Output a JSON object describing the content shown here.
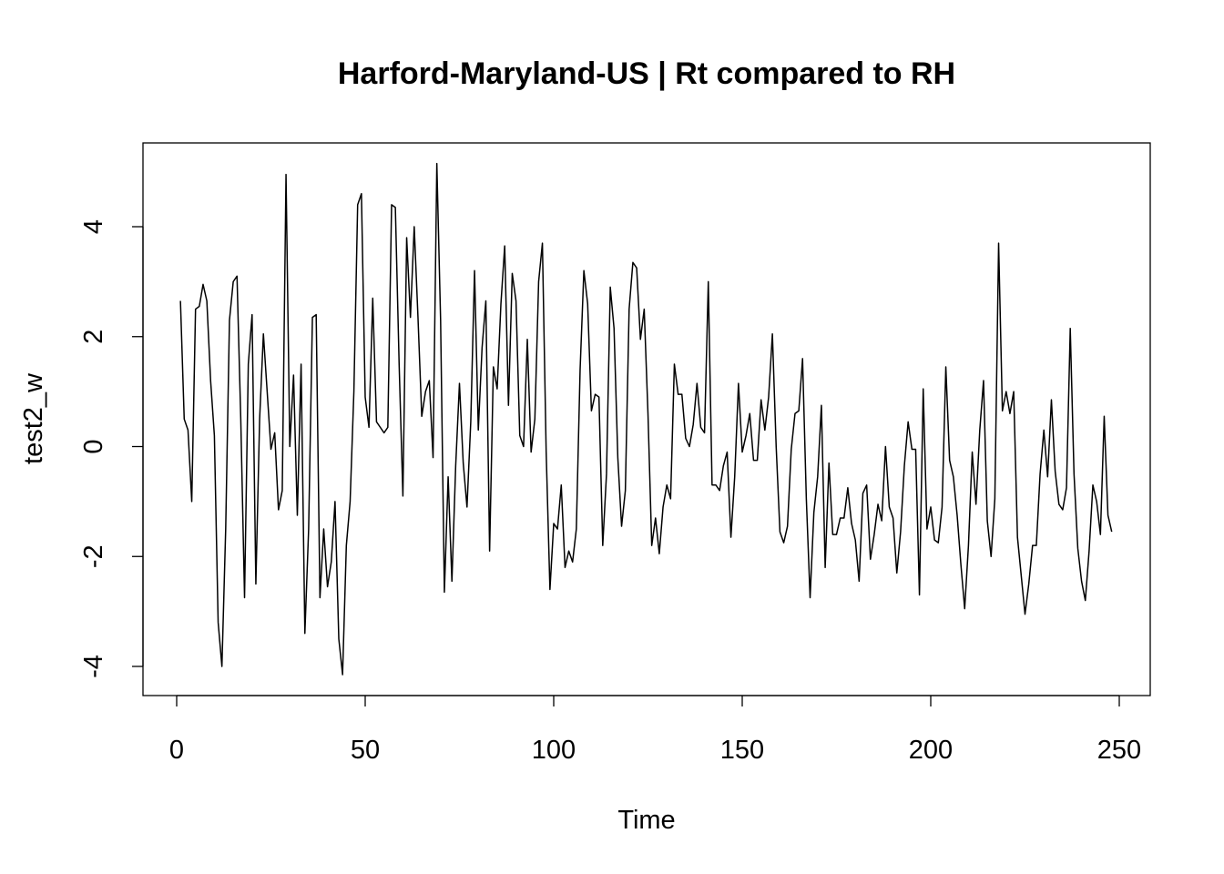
{
  "chart_data": {
    "type": "line",
    "title": "Harford-Maryland-US | Rt compared to RH",
    "xlabel": "Time",
    "ylabel": "test2_w",
    "xlim": [
      0,
      250
    ],
    "ylim": [
      -4,
      4
    ],
    "x_ticks": [
      0,
      50,
      100,
      150,
      200,
      250
    ],
    "y_ticks": [
      -4,
      -2,
      0,
      2,
      4
    ],
    "grid": false,
    "legend": "none",
    "colors": {
      "line": "#000000",
      "background": "#ffffff"
    },
    "x_start": 1,
    "x_step": 1,
    "values": [
      2.65,
      0.5,
      0.3,
      -1.0,
      2.5,
      2.55,
      2.95,
      2.65,
      1.2,
      0.2,
      -3.2,
      -4.0,
      -1.5,
      2.3,
      3.0,
      3.1,
      0.5,
      -2.75,
      1.5,
      2.4,
      -2.5,
      0.5,
      2.05,
      1.0,
      -0.05,
      0.25,
      -1.15,
      -0.8,
      4.95,
      0.0,
      1.3,
      -1.25,
      1.5,
      -3.4,
      -1.5,
      2.35,
      2.4,
      -2.75,
      -1.5,
      -2.55,
      -2.1,
      -1.0,
      -3.5,
      -4.15,
      -1.8,
      -1.0,
      1.0,
      4.4,
      4.6,
      0.9,
      0.35,
      2.7,
      0.45,
      0.35,
      0.25,
      0.35,
      4.4,
      4.35,
      1.5,
      -0.9,
      3.8,
      2.35,
      4.0,
      2.35,
      0.55,
      1.0,
      1.2,
      -0.2,
      5.15,
      2.3,
      -2.65,
      -0.55,
      -2.45,
      -0.35,
      1.15,
      -0.3,
      -1.1,
      0.45,
      3.2,
      0.3,
      1.8,
      2.65,
      -1.9,
      1.45,
      1.05,
      2.6,
      3.65,
      0.75,
      3.15,
      2.65,
      0.2,
      0.0,
      1.95,
      -0.1,
      0.5,
      3.0,
      3.7,
      -0.1,
      -2.6,
      -1.4,
      -1.5,
      -0.7,
      -2.2,
      -1.9,
      -2.1,
      -1.5,
      1.4,
      3.2,
      2.6,
      0.65,
      0.95,
      0.9,
      -1.8,
      -0.5,
      2.9,
      2.15,
      -0.2,
      -1.45,
      -0.8,
      2.5,
      3.35,
      3.25,
      1.95,
      2.5,
      0.6,
      -1.8,
      -1.3,
      -1.95,
      -1.1,
      -0.7,
      -0.95,
      1.5,
      0.95,
      0.95,
      0.15,
      0.0,
      0.4,
      1.15,
      0.35,
      0.25,
      3.0,
      -0.7,
      -0.7,
      -0.8,
      -0.35,
      -0.1,
      -1.65,
      -0.55,
      1.15,
      -0.1,
      0.2,
      0.6,
      -0.25,
      -0.25,
      0.85,
      0.3,
      0.9,
      2.05,
      0.0,
      -1.55,
      -1.75,
      -1.45,
      -0.05,
      0.6,
      0.65,
      1.6,
      -0.95,
      -2.75,
      -1.2,
      -0.55,
      0.75,
      -2.2,
      -0.3,
      -1.6,
      -1.6,
      -1.3,
      -1.3,
      -0.75,
      -1.4,
      -1.7,
      -2.45,
      -0.85,
      -0.7,
      -2.05,
      -1.6,
      -1.05,
      -1.35,
      0.0,
      -1.1,
      -1.3,
      -2.3,
      -1.55,
      -0.35,
      0.45,
      -0.05,
      -0.05,
      -2.7,
      1.05,
      -1.5,
      -1.1,
      -1.7,
      -1.75,
      -1.1,
      1.45,
      -0.25,
      -0.55,
      -1.25,
      -2.15,
      -2.95,
      -1.8,
      -0.1,
      -1.05,
      0.3,
      1.2,
      -1.35,
      -2.0,
      -0.95,
      3.7,
      0.65,
      1.0,
      0.6,
      1.0,
      -1.65,
      -2.35,
      -3.05,
      -2.5,
      -1.8,
      -1.8,
      -0.5,
      0.3,
      -0.55,
      0.85,
      -0.45,
      -1.05,
      -1.15,
      -0.75,
      2.15,
      -0.5,
      -1.85,
      -2.45,
      -2.8,
      -1.9,
      -0.7,
      -1.0,
      -1.6,
      0.55,
      -1.25,
      -1.55
    ]
  }
}
